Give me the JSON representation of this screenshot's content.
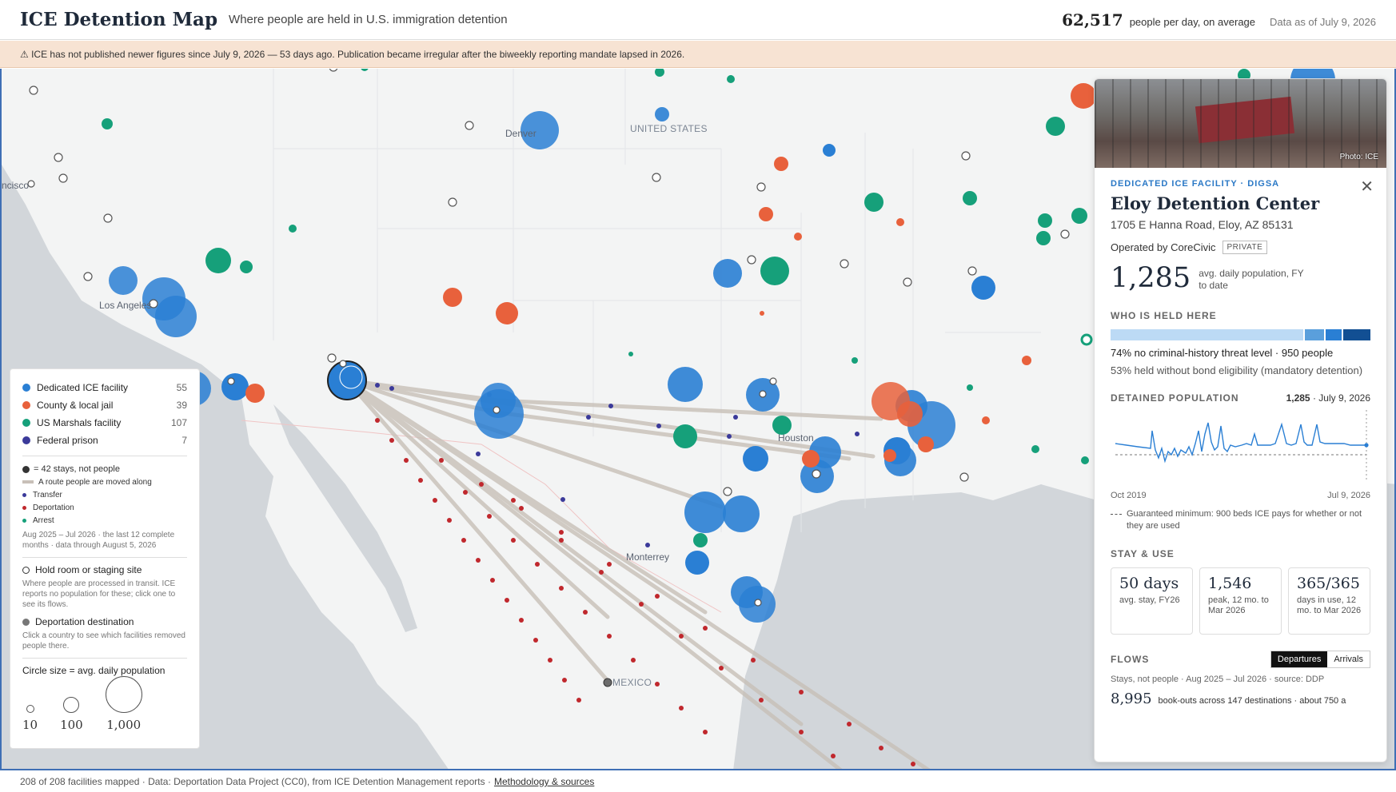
{
  "header": {
    "title": "ICE Detention Map",
    "subtitle": "Where people are held in U.S. immigration detention",
    "count": "62,517",
    "count_label": "people per day, on average",
    "as_of": "Data as of July 9, 2026"
  },
  "banner": {
    "text": "⚠ ICE has not published newer figures since July 9, 2026 — 53 days ago. Publication became irregular after the biweekly reporting mandate lapsed in 2026."
  },
  "map": {
    "labels": {
      "denver": "Denver",
      "united_states": "UNITED STATES",
      "los_angeles": "Los Angeles",
      "houston": "Houston",
      "monterrey": "Monterrey",
      "mexico": "MEXICO",
      "francisco": "ncisco"
    },
    "colors": {
      "ice": "#2a7fd4",
      "county": "#e8613c",
      "marshals": "#16a07a",
      "federal": "#3b3a9a",
      "deportation": "#c0282d",
      "route": "#c8c0b8"
    }
  },
  "legend": {
    "types": [
      {
        "label": "Dedicated ICE facility",
        "count": "55",
        "color": "#2a7fd4"
      },
      {
        "label": "County & local jail",
        "count": "39",
        "color": "#e8613c"
      },
      {
        "label": "US Marshals facility",
        "count": "107",
        "color": "#16a07a"
      },
      {
        "label": "Federal prison",
        "count": "7",
        "color": "#3b3a9a"
      }
    ],
    "stays_note": "= 42 stays, not people",
    "route_note": "A route people are moved along",
    "flow_types": [
      {
        "label": "Transfer",
        "color": "#3b3a9a"
      },
      {
        "label": "Deportation",
        "color": "#c0282d"
      },
      {
        "label": "Arrest",
        "color": "#16a07a"
      }
    ],
    "period_note": "Aug 2025 – Jul 2026 · the last 12 complete months · data through August 5, 2026",
    "hold_room": "Hold room or staging site",
    "hold_room_note": "Where people are processed in transit. ICE reports no population for these; click one to see its flows.",
    "deport_dest": "Deportation destination",
    "deport_dest_note": "Click a country to see which facilities removed people there.",
    "size_title": "Circle size = avg. daily population",
    "sizes": [
      "10",
      "100",
      "1,000"
    ]
  },
  "panel": {
    "photo_credit": "Photo: ICE",
    "kicker": "DEDICATED ICE FACILITY · DIGSA",
    "name": "Eloy Detention Center",
    "address": "1705 E Hanna Road, Eloy, AZ 85131",
    "operator": "Operated by CoreCivic",
    "operator_badge": "PRIVATE",
    "population": "1,285",
    "population_label": "avg. daily population, FY to date",
    "who_title": "WHO IS HELD HERE",
    "threat_pct": 0.74,
    "who_line1": "74% no criminal-history threat level · 950 people",
    "who_line2": "53% held without bond eligibility (mandatory detention)",
    "detained_title": "DETAINED POPULATION",
    "detained_value": "1,285",
    "detained_date": "· July 9, 2026",
    "spark_start": "Oct 2019",
    "spark_end": "Jul 9, 2026",
    "guarantee_note": "Guaranteed minimum: 900 beds ICE pays for whether or not they are used",
    "stay_title": "STAY & USE",
    "stats": [
      {
        "num": "50 days",
        "label": "avg. stay, FY26"
      },
      {
        "num": "1,546",
        "label": "peak, 12 mo. to Mar 2026"
      },
      {
        "num": "365/365",
        "label": "days in use, 12 mo. to Mar 2026"
      }
    ],
    "flows_title": "FLOWS",
    "tab_departures": "Departures",
    "tab_arrivals": "Arrivals",
    "flows_source": "Stays, not people · Aug 2025 – Jul 2026 · source: DDP",
    "bookouts_num": "8,995",
    "bookouts_label": "book-outs across 147 destinations · about 750 a"
  },
  "footer": {
    "text": "208 of 208 facilities mapped · Data: Deportation Data Project (CC0), from ICE Detention Management reports ·",
    "link": "Methodology & sources"
  }
}
